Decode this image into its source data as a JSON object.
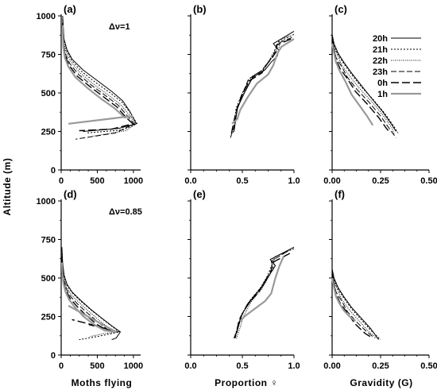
{
  "figure": {
    "ylabel": "Altitude (m)",
    "xlabels": [
      "Moths flying",
      "Proportion ♀",
      "Gravidity (G)"
    ],
    "legend": {
      "entries": [
        {
          "label": "20h",
          "color": "#000000",
          "dash": "none",
          "width": 1
        },
        {
          "label": "21h",
          "color": "#000000",
          "dash": "2,2",
          "width": 1
        },
        {
          "label": "22h",
          "color": "#000000",
          "dash": "1,1.5",
          "width": 1
        },
        {
          "label": "23h",
          "color": "#000000",
          "dash": "7,3",
          "width": 1
        },
        {
          "label": "0h",
          "color": "#000000",
          "dash": "10,4",
          "width": 1.4
        },
        {
          "label": "1h",
          "color": "#999999",
          "dash": "none",
          "width": 2.2
        }
      ]
    }
  },
  "chart_data": [
    {
      "panel": "(a)",
      "type": "line",
      "annotation": "Δν=1",
      "xlim": [
        0,
        1000
      ],
      "ylim": [
        0,
        1000
      ],
      "xticks": [
        "0",
        "500",
        "1000"
      ],
      "yticks": [
        "0",
        "250",
        "500",
        "750",
        "1000"
      ],
      "series": [
        {
          "name": "20h",
          "x": [
            20,
            40,
            80,
            150,
            300,
            500,
            700,
            850,
            950,
            1040,
            800,
            300
          ],
          "y": [
            1000,
            850,
            780,
            720,
            650,
            580,
            510,
            450,
            380,
            300,
            270,
            250
          ]
        },
        {
          "name": "21h",
          "x": [
            20,
            40,
            80,
            150,
            280,
            470,
            680,
            840,
            960,
            1050,
            850,
            350
          ],
          "y": [
            980,
            840,
            770,
            710,
            640,
            570,
            500,
            440,
            370,
            300,
            260,
            240
          ]
        },
        {
          "name": "22h",
          "x": [
            20,
            35,
            70,
            140,
            260,
            440,
            640,
            810,
            940,
            1030,
            900,
            450
          ],
          "y": [
            970,
            830,
            760,
            700,
            630,
            560,
            490,
            430,
            360,
            300,
            255,
            220
          ]
        },
        {
          "name": "23h",
          "x": [
            20,
            30,
            60,
            120,
            240,
            420,
            620,
            790,
            920,
            1010,
            750,
            200
          ],
          "y": [
            960,
            820,
            750,
            690,
            620,
            550,
            480,
            420,
            350,
            300,
            240,
            200
          ]
        },
        {
          "name": "0h",
          "x": [
            20,
            30,
            55,
            110,
            220,
            400,
            600,
            770,
            900,
            990,
            700,
            250
          ],
          "y": [
            950,
            810,
            740,
            680,
            610,
            540,
            470,
            410,
            340,
            300,
            265,
            255
          ]
        },
        {
          "name": "1h",
          "x": [
            20,
            30,
            50,
            100,
            200,
            370,
            560,
            740,
            880,
            980,
            100
          ],
          "y": [
            940,
            800,
            730,
            670,
            600,
            530,
            460,
            400,
            340,
            350,
            300
          ]
        }
      ]
    },
    {
      "panel": "(b)",
      "type": "line",
      "xlim": [
        0,
        1
      ],
      "ylim": [
        0,
        1000
      ],
      "xticks": [
        "0.0",
        "0.5",
        "1.0"
      ],
      "yticks": [],
      "series": [
        {
          "name": "20h",
          "x": [
            1.0,
            0.8,
            0.85,
            0.84,
            0.78,
            0.72,
            0.6,
            0.52,
            0.45,
            0.43,
            0.42
          ],
          "y": [
            900,
            820,
            780,
            740,
            700,
            650,
            600,
            500,
            400,
            300,
            250
          ]
        },
        {
          "name": "21h",
          "x": [
            1.0,
            0.85,
            0.82,
            0.8,
            0.75,
            0.7,
            0.58,
            0.5,
            0.44,
            0.42,
            0.41
          ],
          "y": [
            880,
            830,
            790,
            750,
            700,
            650,
            600,
            500,
            400,
            300,
            240
          ]
        },
        {
          "name": "22h",
          "x": [
            0.95,
            0.85,
            0.86,
            0.8,
            0.76,
            0.72,
            0.6,
            0.52,
            0.46,
            0.43,
            0.42
          ],
          "y": [
            870,
            840,
            800,
            760,
            710,
            660,
            610,
            510,
            410,
            310,
            250
          ]
        },
        {
          "name": "23h",
          "x": [
            0.98,
            0.84,
            0.83,
            0.8,
            0.74,
            0.68,
            0.56,
            0.5,
            0.45,
            0.42,
            0.38
          ],
          "y": [
            860,
            820,
            790,
            740,
            690,
            640,
            590,
            490,
            390,
            280,
            200
          ]
        },
        {
          "name": "0h",
          "x": [
            0.97,
            0.83,
            0.84,
            0.79,
            0.73,
            0.69,
            0.57,
            0.49,
            0.44,
            0.41,
            0.39
          ],
          "y": [
            850,
            810,
            780,
            730,
            680,
            630,
            580,
            480,
            380,
            290,
            220
          ]
        },
        {
          "name": "1h",
          "x": [
            1.0,
            0.88,
            0.85,
            0.82,
            0.8,
            0.75,
            0.64,
            0.55,
            0.48,
            0.45,
            0.4
          ],
          "y": [
            850,
            800,
            770,
            720,
            680,
            620,
            560,
            470,
            390,
            330,
            300
          ]
        }
      ]
    },
    {
      "panel": "(c)",
      "type": "line",
      "xlim": [
        0,
        0.5
      ],
      "ylim": [
        0,
        1000
      ],
      "xticks": [
        "0.00",
        "0.25",
        "0.50"
      ],
      "yticks": [],
      "series": [
        {
          "name": "20h",
          "x": [
            0.0,
            0.01,
            0.03,
            0.06,
            0.1,
            0.15,
            0.2,
            0.26,
            0.31,
            0.33
          ],
          "y": [
            880,
            820,
            760,
            700,
            630,
            550,
            470,
            380,
            290,
            250
          ]
        },
        {
          "name": "21h",
          "x": [
            0.0,
            0.01,
            0.03,
            0.06,
            0.1,
            0.15,
            0.21,
            0.27,
            0.32,
            0.34
          ],
          "y": [
            870,
            810,
            750,
            690,
            620,
            540,
            460,
            370,
            280,
            240
          ]
        },
        {
          "name": "22h",
          "x": [
            0.0,
            0.01,
            0.03,
            0.05,
            0.09,
            0.14,
            0.2,
            0.26,
            0.31,
            0.32
          ],
          "y": [
            860,
            800,
            740,
            680,
            610,
            530,
            450,
            360,
            270,
            230
          ]
        },
        {
          "name": "23h",
          "x": [
            0.0,
            0.01,
            0.02,
            0.05,
            0.08,
            0.13,
            0.19,
            0.25,
            0.3,
            0.33
          ],
          "y": [
            850,
            790,
            730,
            670,
            600,
            520,
            440,
            350,
            260,
            210
          ]
        },
        {
          "name": "0h",
          "x": [
            0.0,
            0.01,
            0.02,
            0.04,
            0.08,
            0.12,
            0.18,
            0.24,
            0.28,
            0.3
          ],
          "y": [
            840,
            780,
            720,
            660,
            590,
            510,
            430,
            340,
            270,
            240
          ]
        },
        {
          "name": "1h",
          "x": [
            0.0,
            0.01,
            0.02,
            0.04,
            0.07,
            0.1,
            0.14,
            0.18,
            0.21
          ],
          "y": [
            820,
            760,
            700,
            640,
            570,
            490,
            420,
            350,
            290
          ]
        }
      ]
    },
    {
      "panel": "(d)",
      "type": "line",
      "annotation": "Δν=0.85",
      "xlim": [
        0,
        1000
      ],
      "ylim": [
        0,
        1000
      ],
      "xticks": [
        "0",
        "500",
        "1000"
      ],
      "yticks": [
        "0",
        "250",
        "500",
        "750",
        "1000"
      ],
      "series": [
        {
          "name": "20h",
          "x": [
            10,
            20,
            40,
            80,
            150,
            260,
            400,
            560,
            700,
            820,
            760,
            700
          ],
          "y": [
            700,
            600,
            520,
            460,
            410,
            360,
            300,
            240,
            190,
            150,
            110,
            100
          ]
        },
        {
          "name": "21h",
          "x": [
            10,
            20,
            40,
            85,
            160,
            270,
            420,
            580,
            720,
            810,
            500,
            250
          ],
          "y": [
            680,
            590,
            510,
            450,
            400,
            350,
            290,
            230,
            180,
            150,
            120,
            100
          ]
        },
        {
          "name": "22h",
          "x": [
            10,
            18,
            38,
            75,
            140,
            250,
            390,
            540,
            680,
            800,
            600,
            400
          ],
          "y": [
            660,
            580,
            500,
            440,
            390,
            340,
            280,
            220,
            170,
            150,
            140,
            120
          ]
        },
        {
          "name": "23h",
          "x": [
            10,
            18,
            35,
            70,
            130,
            230,
            370,
            520,
            660,
            790,
            350
          ],
          "y": [
            640,
            570,
            490,
            430,
            380,
            330,
            270,
            210,
            160,
            150,
            200
          ]
        },
        {
          "name": "0h",
          "x": [
            10,
            16,
            32,
            65,
            120,
            210,
            340,
            490,
            640,
            780,
            400,
            150
          ],
          "y": [
            620,
            560,
            480,
            420,
            370,
            320,
            260,
            200,
            160,
            150,
            200,
            230
          ]
        },
        {
          "name": "1h",
          "x": [
            10,
            15,
            30,
            60,
            110,
            190,
            310,
            450,
            600,
            760,
            100
          ],
          "y": [
            600,
            540,
            470,
            410,
            360,
            310,
            250,
            200,
            160,
            150,
            320
          ]
        }
      ]
    },
    {
      "panel": "(e)",
      "type": "line",
      "xlim": [
        0,
        1
      ],
      "ylim": [
        0,
        1000
      ],
      "xticks": [
        "0.0",
        "0.5",
        "1.0"
      ],
      "yticks": [],
      "series": [
        {
          "name": "20h",
          "x": [
            1.0,
            0.77,
            0.82,
            0.76,
            0.7,
            0.6,
            0.5,
            0.46,
            0.43
          ],
          "y": [
            700,
            620,
            580,
            520,
            450,
            370,
            270,
            180,
            120
          ]
        },
        {
          "name": "21h",
          "x": [
            1.0,
            0.82,
            0.79,
            0.74,
            0.68,
            0.58,
            0.49,
            0.45,
            0.42
          ],
          "y": [
            690,
            640,
            590,
            510,
            440,
            360,
            260,
            170,
            110
          ]
        },
        {
          "name": "22h",
          "x": [
            0.95,
            0.8,
            0.81,
            0.75,
            0.69,
            0.59,
            0.51,
            0.47,
            0.44
          ],
          "y": [
            680,
            630,
            570,
            500,
            430,
            350,
            250,
            160,
            100
          ]
        },
        {
          "name": "23h",
          "x": [
            0.93,
            0.78,
            0.8,
            0.73,
            0.66,
            0.56,
            0.48,
            0.45,
            0.43
          ],
          "y": [
            670,
            610,
            560,
            490,
            420,
            340,
            240,
            150,
            110
          ]
        },
        {
          "name": "0h",
          "x": [
            0.96,
            0.79,
            0.78,
            0.72,
            0.66,
            0.55,
            0.47,
            0.44,
            0.42
          ],
          "y": [
            660,
            600,
            550,
            480,
            410,
            330,
            230,
            140,
            110
          ]
        },
        {
          "name": "1h",
          "x": [
            0.9,
            0.86,
            0.82,
            0.78,
            0.72,
            0.62,
            0.52,
            0.48
          ],
          "y": [
            640,
            580,
            500,
            400,
            350,
            300,
            250,
            220
          ]
        }
      ]
    },
    {
      "panel": "(f)",
      "type": "line",
      "xlim": [
        0,
        0.5
      ],
      "ylim": [
        0,
        1000
      ],
      "xticks": [
        "0.00",
        "0.25",
        "0.50"
      ],
      "yticks": [],
      "series": [
        {
          "name": "20h",
          "x": [
            0.0,
            0.01,
            0.03,
            0.06,
            0.1,
            0.15,
            0.2,
            0.24
          ],
          "y": [
            560,
            500,
            440,
            380,
            310,
            240,
            170,
            100
          ]
        },
        {
          "name": "21h",
          "x": [
            0.0,
            0.01,
            0.03,
            0.06,
            0.1,
            0.15,
            0.2,
            0.25
          ],
          "y": [
            550,
            490,
            430,
            370,
            300,
            230,
            160,
            100
          ]
        },
        {
          "name": "22h",
          "x": [
            0.0,
            0.01,
            0.03,
            0.05,
            0.09,
            0.14,
            0.19,
            0.23
          ],
          "y": [
            540,
            480,
            420,
            360,
            290,
            220,
            150,
            110
          ]
        },
        {
          "name": "23h",
          "x": [
            0.0,
            0.01,
            0.02,
            0.05,
            0.08,
            0.13,
            0.18,
            0.22
          ],
          "y": [
            530,
            470,
            410,
            350,
            280,
            210,
            150,
            110
          ]
        },
        {
          "name": "0h",
          "x": [
            0.0,
            0.01,
            0.02,
            0.04,
            0.08,
            0.12,
            0.17,
            0.21
          ],
          "y": [
            520,
            460,
            400,
            340,
            270,
            200,
            140,
            110
          ]
        },
        {
          "name": "1h",
          "x": [
            0.0,
            0.01,
            0.02,
            0.04,
            0.06,
            0.09,
            0.12
          ],
          "y": [
            500,
            440,
            380,
            330,
            290,
            250,
            220
          ]
        }
      ]
    }
  ]
}
